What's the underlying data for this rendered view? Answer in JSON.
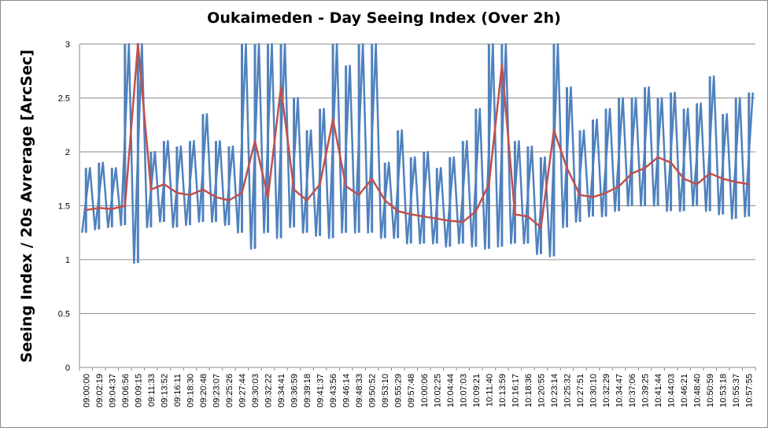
{
  "chart_data": {
    "type": "line",
    "title": "Oukaimeden - Day Seeing Index (Over 2h)",
    "xlabel": "",
    "ylabel": "Seeing Index / 20s Avrerage [ArcSec]",
    "ylim": [
      0,
      3
    ],
    "yticks": [
      0,
      0.5,
      1,
      1.5,
      2,
      2.5,
      3
    ],
    "ytick_labels": [
      "0",
      "0.5",
      "1",
      "1.5",
      "2",
      "2.5",
      "3"
    ],
    "grid": true,
    "legend": "none",
    "x_tick_labels": [
      "09:00:00",
      "09:02:19",
      "09:04:37",
      "09:06:56",
      "09:09:15",
      "09:11:33",
      "09:13:52",
      "09:16:11",
      "09:18:30",
      "09:20:48",
      "09:23:07",
      "09:25:26",
      "09:27:44",
      "09:30:03",
      "09:32:22",
      "09:34:41",
      "09:36:59",
      "09:39:18",
      "09:41:37",
      "09:43:56",
      "09:46:14",
      "09:48:33",
      "09:50:52",
      "09:53:10",
      "09:55:29",
      "09:57:48",
      "10:00:06",
      "10:02:25",
      "10:04:44",
      "10:07:03",
      "10:09:21",
      "10:11:40",
      "10:13:59",
      "10:16:17",
      "10:18:36",
      "10:20:55",
      "10:23:14",
      "10:25:32",
      "10:27:51",
      "10:30:10",
      "10:32:29",
      "10:34:47",
      "10:37:06",
      "10:39:25",
      "10:41:44",
      "10:44:03",
      "10:46:21",
      "10:48:40",
      "10:50:59",
      "10:53:18",
      "10:55:37",
      "10:57:55"
    ],
    "series": [
      {
        "color": "#4f81bd",
        "x": [
          "09:00:00",
          "09:02:19",
          "09:04:37",
          "09:06:56",
          "09:09:15",
          "09:11:33",
          "09:13:52",
          "09:16:11",
          "09:18:30",
          "09:20:48",
          "09:23:07",
          "09:25:26",
          "09:27:44",
          "09:30:03",
          "09:32:22",
          "09:34:41",
          "09:36:59",
          "09:39:18",
          "09:41:37",
          "09:43:56",
          "09:46:14",
          "09:48:33",
          "09:50:52",
          "09:53:10",
          "09:55:29",
          "09:57:48",
          "10:00:06",
          "10:02:25",
          "10:04:44",
          "10:07:03",
          "10:09:21",
          "10:11:40",
          "10:13:59",
          "10:16:17",
          "10:18:36",
          "10:20:55",
          "10:23:14",
          "10:25:32",
          "10:27:51",
          "10:30:10",
          "10:32:29",
          "10:34:47",
          "10:37:06",
          "10:39:25",
          "10:41:44",
          "10:44:03",
          "10:46:21",
          "10:48:40",
          "10:50:59",
          "10:53:18",
          "10:55:37",
          "10:57:55"
        ],
        "low": [
          1.25,
          1.28,
          1.3,
          1.32,
          0.97,
          1.3,
          1.35,
          1.3,
          1.32,
          1.35,
          1.35,
          1.32,
          1.25,
          1.1,
          1.25,
          1.2,
          1.3,
          1.25,
          1.22,
          1.2,
          1.25,
          1.25,
          1.25,
          1.2,
          1.2,
          1.15,
          1.15,
          1.15,
          1.12,
          1.15,
          1.12,
          1.1,
          1.12,
          1.15,
          1.15,
          1.05,
          1.03,
          1.3,
          1.35,
          1.4,
          1.4,
          1.45,
          1.5,
          1.5,
          1.5,
          1.45,
          1.45,
          1.5,
          1.45,
          1.42,
          1.38,
          1.4
        ],
        "high": [
          1.85,
          1.9,
          1.85,
          3.0,
          3.0,
          2.0,
          2.1,
          2.05,
          2.1,
          2.35,
          2.1,
          2.05,
          3.0,
          3.0,
          3.0,
          3.0,
          2.5,
          2.2,
          2.4,
          3.0,
          2.8,
          3.0,
          3.0,
          1.9,
          2.2,
          1.95,
          2.0,
          1.85,
          1.95,
          2.1,
          2.4,
          3.0,
          3.0,
          2.1,
          2.05,
          1.95,
          3.0,
          2.6,
          2.2,
          2.3,
          2.4,
          2.5,
          2.5,
          2.6,
          2.5,
          2.55,
          2.4,
          2.45,
          2.7,
          2.35,
          2.5,
          2.55
        ]
      },
      {
        "color": "#c0504d",
        "x": [
          "09:00:00",
          "09:02:19",
          "09:04:37",
          "09:06:56",
          "09:09:15",
          "09:11:33",
          "09:13:52",
          "09:16:11",
          "09:18:30",
          "09:20:48",
          "09:23:07",
          "09:25:26",
          "09:27:44",
          "09:30:03",
          "09:32:22",
          "09:34:41",
          "09:36:59",
          "09:39:18",
          "09:41:37",
          "09:43:56",
          "09:46:14",
          "09:48:33",
          "09:50:52",
          "09:53:10",
          "09:55:29",
          "09:57:48",
          "10:00:06",
          "10:02:25",
          "10:04:44",
          "10:07:03",
          "10:09:21",
          "10:11:40",
          "10:13:59",
          "10:16:17",
          "10:18:36",
          "10:20:55",
          "10:23:14",
          "10:25:32",
          "10:27:51",
          "10:30:10",
          "10:32:29",
          "10:34:47",
          "10:37:06",
          "10:39:25",
          "10:41:44",
          "10:44:03",
          "10:46:21",
          "10:48:40",
          "10:50:59",
          "10:53:18",
          "10:55:37",
          "10:57:55"
        ],
        "values": [
          1.46,
          1.48,
          1.47,
          1.5,
          3.0,
          1.65,
          1.7,
          1.62,
          1.6,
          1.65,
          1.58,
          1.55,
          1.62,
          2.1,
          1.58,
          2.6,
          1.65,
          1.55,
          1.7,
          2.3,
          1.68,
          1.6,
          1.75,
          1.55,
          1.45,
          1.42,
          1.4,
          1.38,
          1.36,
          1.35,
          1.45,
          1.7,
          2.8,
          1.42,
          1.4,
          1.3,
          2.2,
          1.85,
          1.6,
          1.58,
          1.62,
          1.68,
          1.8,
          1.85,
          1.95,
          1.9,
          1.75,
          1.7,
          1.8,
          1.75,
          1.72,
          1.7
        ]
      }
    ]
  }
}
